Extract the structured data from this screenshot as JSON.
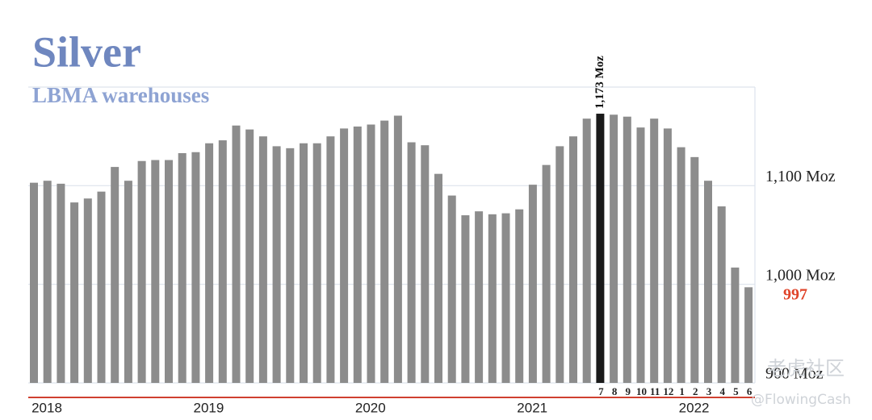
{
  "chart_data": {
    "type": "bar",
    "title": "Silver",
    "subtitle": "LBMA warehouses",
    "categories": [
      null,
      null,
      null,
      null,
      null,
      null,
      null,
      null,
      null,
      null,
      null,
      null,
      null,
      null,
      null,
      null,
      null,
      null,
      null,
      null,
      null,
      null,
      null,
      null,
      null,
      null,
      null,
      null,
      null,
      null,
      null,
      null,
      null,
      null,
      null,
      null,
      null,
      null,
      null,
      null,
      null,
      null,
      "7",
      "8",
      "9",
      "10",
      "11",
      "12",
      "1",
      "2",
      "3",
      "4",
      "5",
      "6"
    ],
    "year_labels": [
      "2018",
      "2019",
      "2020",
      "2021",
      "2022"
    ],
    "values": [
      1103,
      1105,
      1102,
      1083,
      1087,
      1094,
      1119,
      1105,
      1125,
      1126,
      1126,
      1133,
      1134,
      1143,
      1146,
      1161,
      1157,
      1150,
      1140,
      1138,
      1143,
      1143,
      1150,
      1158,
      1160,
      1162,
      1166,
      1171,
      1144,
      1141,
      1112,
      1090,
      1070,
      1074,
      1071,
      1072,
      1076,
      1101,
      1121,
      1140,
      1150,
      1168,
      1173,
      1172,
      1170,
      1159,
      1168,
      1158,
      1139,
      1129,
      1105,
      1079,
      1017,
      997
    ],
    "value_labels": [
      null,
      null,
      null,
      null,
      null,
      null,
      null,
      null,
      null,
      null,
      null,
      null,
      null,
      null,
      null,
      null,
      null,
      null,
      null,
      null,
      null,
      null,
      null,
      null,
      null,
      null,
      null,
      null,
      null,
      null,
      null,
      null,
      null,
      null,
      null,
      null,
      null,
      null,
      null,
      null,
      null,
      null,
      "1,173 Moz",
      null,
      null,
      null,
      null,
      null,
      null,
      null,
      null,
      null,
      null,
      "997"
    ],
    "color": "#8c8c8c",
    "highlight_color": "#1a1a1a",
    "ylim": [
      900,
      1200
    ],
    "yticks": [
      {
        "value": 900,
        "label": "900 Moz"
      },
      {
        "value": 1000,
        "label": "1,000 Moz"
      },
      {
        "value": 1100,
        "label": "1,100 Moz"
      }
    ],
    "grid": true,
    "watermark": [
      "老虎社区",
      "@FlowingCash"
    ]
  }
}
